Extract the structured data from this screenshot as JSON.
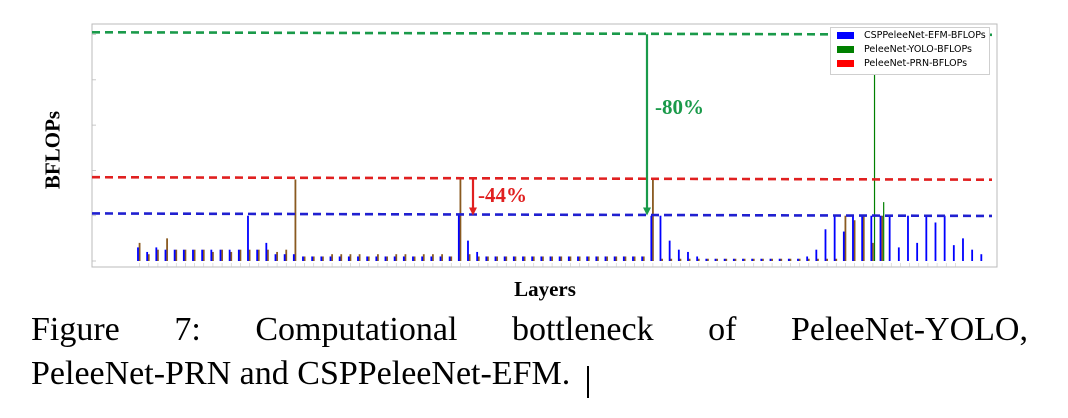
{
  "chart_data": {
    "type": "bar",
    "ylabel": "BFLOPs",
    "xlabel": "Layers",
    "legend": [
      {
        "name": "CSPPeleeNet-EFM-BFLOPs",
        "color": "#0000ff"
      },
      {
        "name": "PeleeNet-YOLO-BFLOPs",
        "color": "#008000"
      },
      {
        "name": "PeleeNet-PRN-BFLOPs",
        "color": "#ff0000"
      }
    ],
    "legend_position": "top-right",
    "ylim": [
      0,
      1.02
    ],
    "reference_lines": [
      {
        "series": "PeleeNet-YOLO-BFLOPs",
        "value": 1.01,
        "color": "#1a9a4a"
      },
      {
        "series": "PeleeNet-PRN-BFLOPs",
        "value": 0.37,
        "color": "#e02020"
      },
      {
        "series": "CSPPeleeNet-EFM-BFLOPs",
        "value": 0.21,
        "color": "#2020d0"
      }
    ],
    "annotations": [
      {
        "text": "-80%",
        "color": "#1a9a4a"
      },
      {
        "text": "-44%",
        "color": "#e02020"
      }
    ],
    "series": [
      {
        "name": "PeleeNet-PRN-BFLOPs",
        "values": [
          0.08,
          0.03,
          0.05,
          0.1,
          0.05,
          0.05,
          0.05,
          0.05,
          0.04,
          0.05,
          0.04,
          0.05,
          0.05,
          0.05,
          0.05,
          0.04,
          0.05,
          0.36,
          0.02,
          0.02,
          0.02,
          0.03,
          0.03,
          0.03,
          0.03,
          0.02,
          0.03,
          0.02,
          0.03,
          0.03,
          0.02,
          0.03,
          0.03,
          0.03,
          0.02,
          0.36,
          0.03,
          0.02,
          0.02,
          0.02,
          0.02,
          0.02,
          0.02,
          0.02,
          0.02,
          0.02,
          0.02,
          0.02,
          0.02,
          0.02,
          0.02,
          0.02,
          0.02,
          0.02,
          0.02,
          0.02,
          0.36,
          0.01,
          0.01,
          0.01,
          0.01,
          0.01,
          0.01,
          0.01,
          0.01,
          0.01,
          0.01,
          0.01,
          0.01,
          0.01,
          0.01,
          0.01,
          0.01,
          0.01,
          0.01,
          0.01,
          0.01,
          0.2,
          0.18,
          0.2,
          0.08,
          0.2,
          0.0,
          0.0,
          0.0,
          0.0,
          0.0,
          0.0,
          0.0,
          0.0
        ]
      },
      {
        "name": "PeleeNet-YOLO-BFLOPs",
        "values": [
          0.0,
          0.0,
          0.0,
          0.0,
          0.0,
          0.0,
          0.0,
          0.0,
          0.0,
          0.0,
          0.0,
          0.0,
          0.0,
          0.0,
          0.0,
          0.0,
          0.0,
          0.0,
          0.0,
          0.0,
          0.0,
          0.0,
          0.0,
          0.0,
          0.0,
          0.0,
          0.0,
          0.0,
          0.0,
          0.0,
          0.0,
          0.0,
          0.0,
          0.0,
          0.0,
          0.0,
          0.0,
          0.0,
          0.0,
          0.0,
          0.0,
          0.0,
          0.0,
          0.0,
          0.0,
          0.0,
          0.0,
          0.0,
          0.0,
          0.0,
          0.0,
          0.0,
          0.0,
          0.0,
          0.0,
          0.0,
          0.0,
          0.0,
          0.0,
          0.0,
          0.0,
          0.0,
          0.0,
          0.0,
          0.0,
          0.0,
          0.0,
          0.0,
          0.0,
          0.0,
          0.0,
          0.0,
          0.0,
          0.0,
          0.0,
          0.0,
          0.0,
          0.0,
          0.0,
          0.0,
          1.0,
          0.26,
          0.0,
          0.0,
          0.0,
          0.0,
          0.0,
          0.0,
          0.0,
          0.0
        ]
      },
      {
        "name": "CSPPeleeNet-EFM-BFLOPs",
        "values": [
          0.06,
          0.04,
          0.06,
          0.05,
          0.05,
          0.05,
          0.05,
          0.05,
          0.05,
          0.05,
          0.05,
          0.05,
          0.2,
          0.05,
          0.08,
          0.03,
          0.03,
          0.03,
          0.02,
          0.02,
          0.02,
          0.02,
          0.02,
          0.02,
          0.02,
          0.02,
          0.02,
          0.02,
          0.02,
          0.02,
          0.02,
          0.02,
          0.02,
          0.02,
          0.02,
          0.21,
          0.09,
          0.04,
          0.02,
          0.02,
          0.02,
          0.02,
          0.02,
          0.02,
          0.02,
          0.02,
          0.02,
          0.02,
          0.02,
          0.02,
          0.02,
          0.02,
          0.02,
          0.02,
          0.02,
          0.02,
          0.2,
          0.2,
          0.09,
          0.05,
          0.04,
          0.02,
          0.01,
          0.01,
          0.01,
          0.01,
          0.01,
          0.01,
          0.01,
          0.01,
          0.01,
          0.01,
          0.01,
          0.02,
          0.05,
          0.14,
          0.2,
          0.13,
          0.2,
          0.2,
          0.2,
          0.2,
          0.2,
          0.06,
          0.2,
          0.08,
          0.2,
          0.17,
          0.2,
          0.07,
          0.1,
          0.05,
          0.03
        ]
      }
    ]
  },
  "caption": {
    "line1_words": [
      "Figure",
      "7:",
      "Computational",
      "bottleneck",
      "of",
      "PeleeNet-YOLO,"
    ],
    "line2": "PeleeNet-PRN and CSPPeleeNet-EFM."
  }
}
